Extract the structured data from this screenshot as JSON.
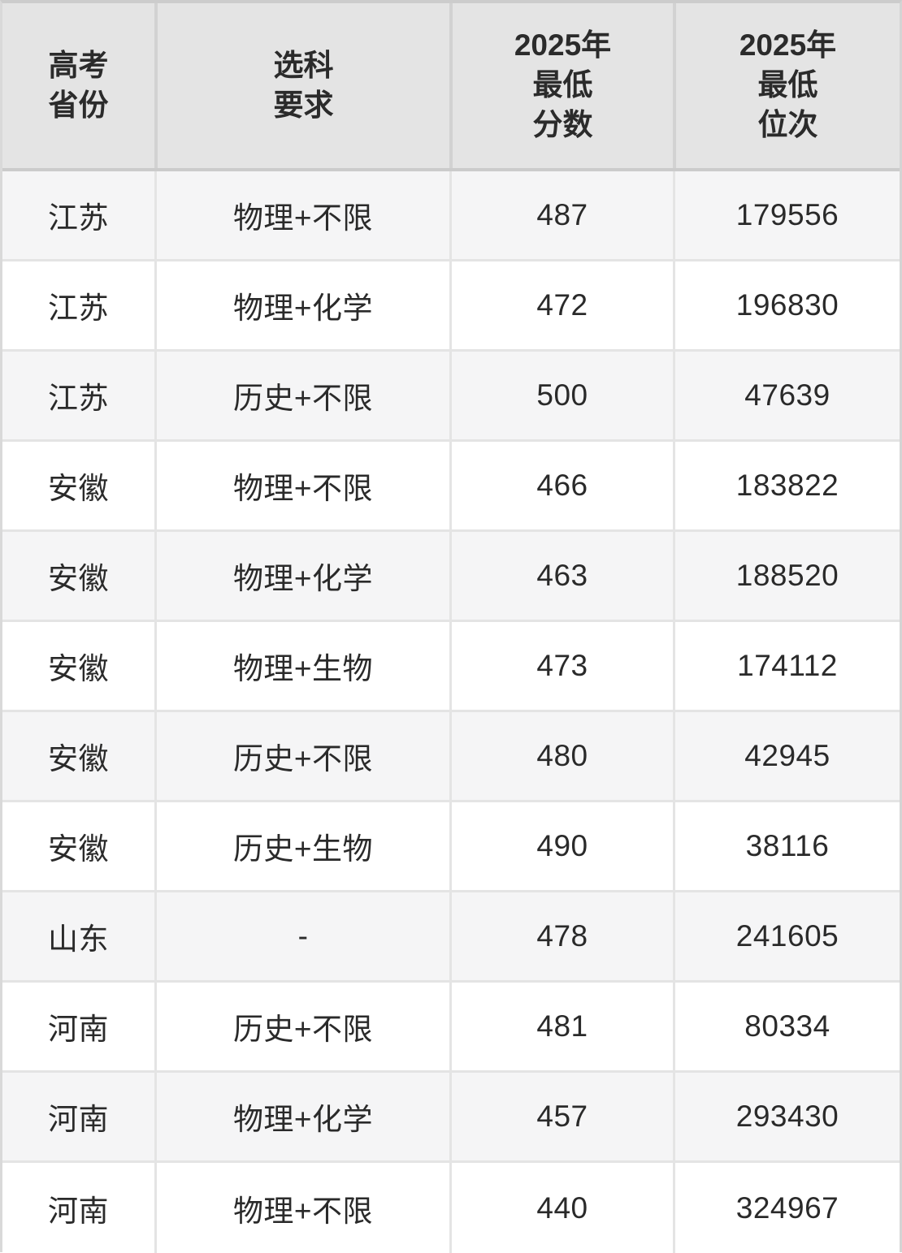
{
  "table": {
    "header": {
      "province": "高考\n省份",
      "requirement": "选科\n要求",
      "score": "2025年\n最低\n分数",
      "rank": "2025年\n最低\n位次"
    },
    "rows": [
      {
        "province": "江苏",
        "requirement": "物理+不限",
        "score": "487",
        "rank": "179556"
      },
      {
        "province": "江苏",
        "requirement": "物理+化学",
        "score": "472",
        "rank": "196830"
      },
      {
        "province": "江苏",
        "requirement": "历史+不限",
        "score": "500",
        "rank": "47639"
      },
      {
        "province": "安徽",
        "requirement": "物理+不限",
        "score": "466",
        "rank": "183822"
      },
      {
        "province": "安徽",
        "requirement": "物理+化学",
        "score": "463",
        "rank": "188520"
      },
      {
        "province": "安徽",
        "requirement": "物理+生物",
        "score": "473",
        "rank": "174112"
      },
      {
        "province": "安徽",
        "requirement": "历史+不限",
        "score": "480",
        "rank": "42945"
      },
      {
        "province": "安徽",
        "requirement": "历史+生物",
        "score": "490",
        "rank": "38116"
      },
      {
        "province": "山东",
        "requirement": "-",
        "score": "478",
        "rank": "241605"
      },
      {
        "province": "河南",
        "requirement": "历史+不限",
        "score": "481",
        "rank": "80334"
      },
      {
        "province": "河南",
        "requirement": "物理+化学",
        "score": "457",
        "rank": "293430"
      },
      {
        "province": "河南",
        "requirement": "物理+不限",
        "score": "440",
        "rank": "324967"
      }
    ]
  },
  "chart_data": {
    "type": "table",
    "title": "",
    "columns": [
      "高考省份",
      "选科要求",
      "2025年最低分数",
      "2025年最低位次"
    ],
    "rows": [
      [
        "江苏",
        "物理+不限",
        487,
        179556
      ],
      [
        "江苏",
        "物理+化学",
        472,
        196830
      ],
      [
        "江苏",
        "历史+不限",
        500,
        47639
      ],
      [
        "安徽",
        "物理+不限",
        466,
        183822
      ],
      [
        "安徽",
        "物理+化学",
        463,
        188520
      ],
      [
        "安徽",
        "物理+生物",
        473,
        174112
      ],
      [
        "安徽",
        "历史+不限",
        480,
        42945
      ],
      [
        "安徽",
        "历史+生物",
        490,
        38116
      ],
      [
        "山东",
        "-",
        478,
        241605
      ],
      [
        "河南",
        "历史+不限",
        481,
        80334
      ],
      [
        "河南",
        "物理+化学",
        457,
        293430
      ],
      [
        "河南",
        "物理+不限",
        440,
        324967
      ]
    ]
  },
  "colors": {
    "header_bg": "#e4e4e4",
    "row_bg_odd": "#ffffff",
    "row_bg_even": "#f5f5f6",
    "grid_border": "#e4e4e4",
    "header_border": "#cbcbcb",
    "text": "#2a2a2a"
  }
}
